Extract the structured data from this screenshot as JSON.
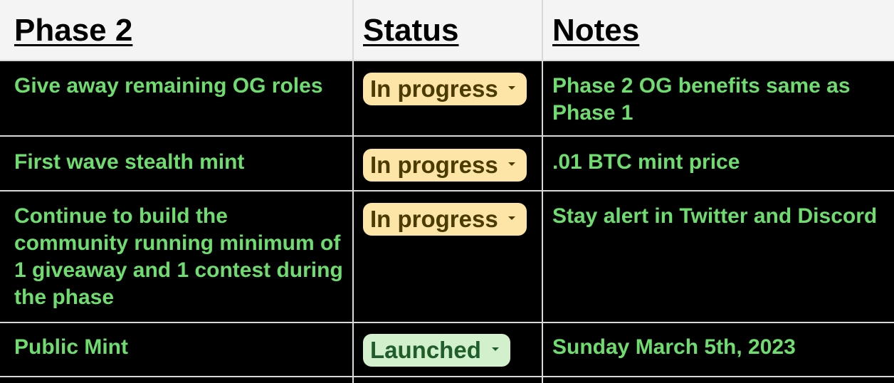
{
  "headers": [
    "Phase 2",
    "Status",
    "Notes"
  ],
  "rows": [
    {
      "task": "Give away remaining OG roles",
      "status": "In progress",
      "note": "Phase 2 OG benefits same as Phase 1"
    },
    {
      "task": "First wave stealth mint",
      "status": "In progress",
      "note": ".01 BTC mint price"
    },
    {
      "task": "Continue to build the community running minimum of 1 giveaway and 1 contest during the phase",
      "status": "In progress",
      "note": "Stay alert in Twitter and Discord"
    },
    {
      "task": "Public Mint",
      "status": "Launched",
      "note": "Sunday March 5th, 2023"
    }
  ],
  "colors": {
    "header_bg": "#f4f4f4",
    "body_bg": "#000000",
    "text_green": "#6fdc6f",
    "chip_in_progress": "#fde4a7",
    "chip_launched": "#d2f0cc",
    "gridline": "#d9d9d9"
  }
}
